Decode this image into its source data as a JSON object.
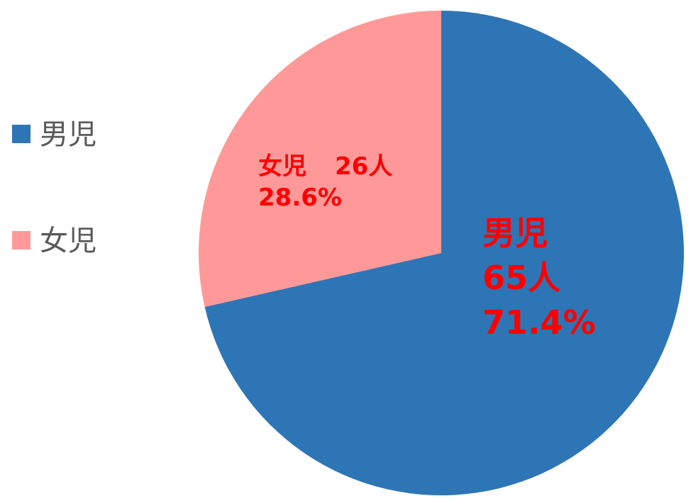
{
  "chart_data": {
    "type": "pie",
    "title": "",
    "legend_position": "left",
    "slices": [
      {
        "name": "男児",
        "count": 65,
        "count_label": "65人",
        "percent": 71.4,
        "percent_label": "71.4%",
        "color": "#2e75b6"
      },
      {
        "name": "女児",
        "count": 26,
        "count_label": "26人",
        "percent": 28.6,
        "percent_label": "28.6%",
        "color": "#ff9999"
      }
    ],
    "label_color": "#ff0000"
  }
}
